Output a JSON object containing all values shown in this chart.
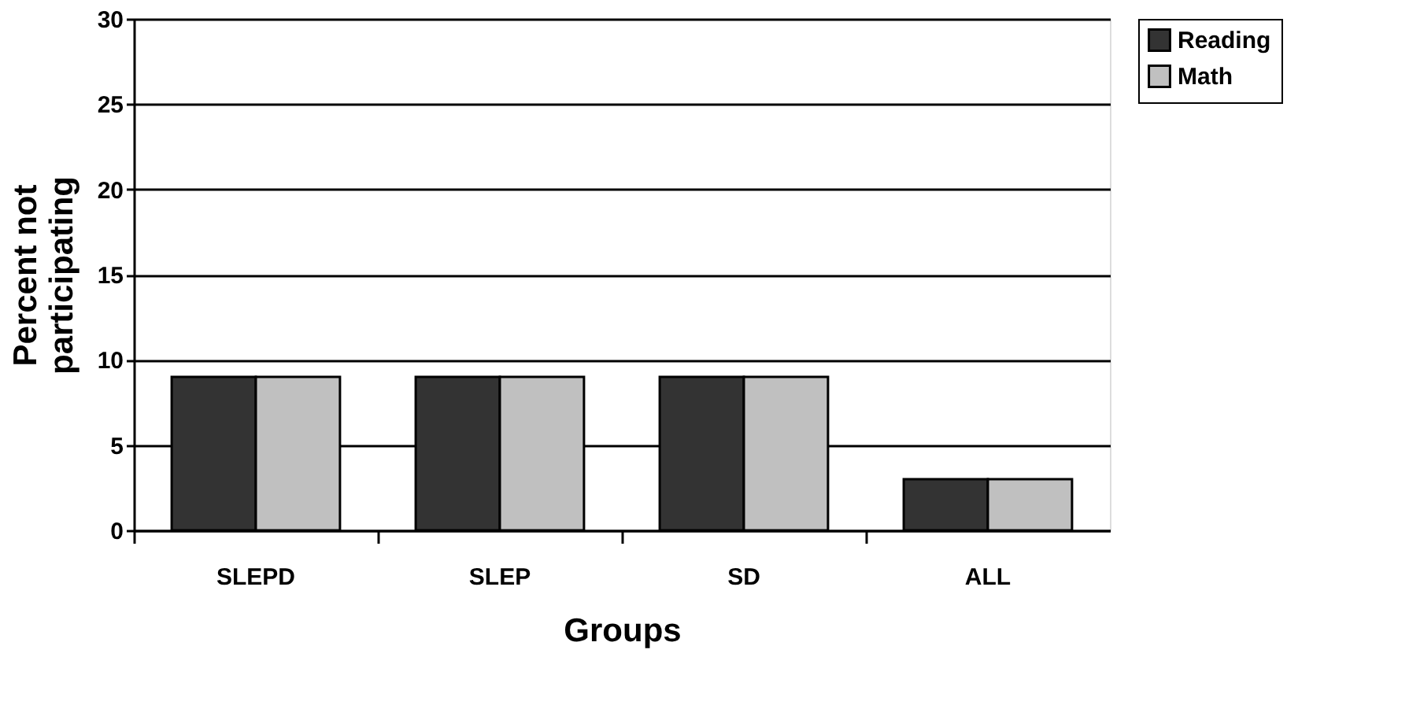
{
  "chart_data": {
    "type": "bar",
    "xlabel": "Groups",
    "ylabel": "Percent not participating",
    "categories": [
      "SLEPD",
      "SLEP",
      "SD",
      "ALL"
    ],
    "series": [
      {
        "name": "Reading",
        "color": "#333333",
        "values": [
          9,
          9,
          9,
          3
        ]
      },
      {
        "name": "Math",
        "color": "#c0c0c0",
        "values": [
          9,
          9,
          9,
          3
        ]
      }
    ],
    "ylim": [
      0,
      30
    ],
    "yticks": [
      0,
      5,
      10,
      15,
      20,
      25,
      30
    ],
    "grid": "y",
    "legend": "right"
  }
}
